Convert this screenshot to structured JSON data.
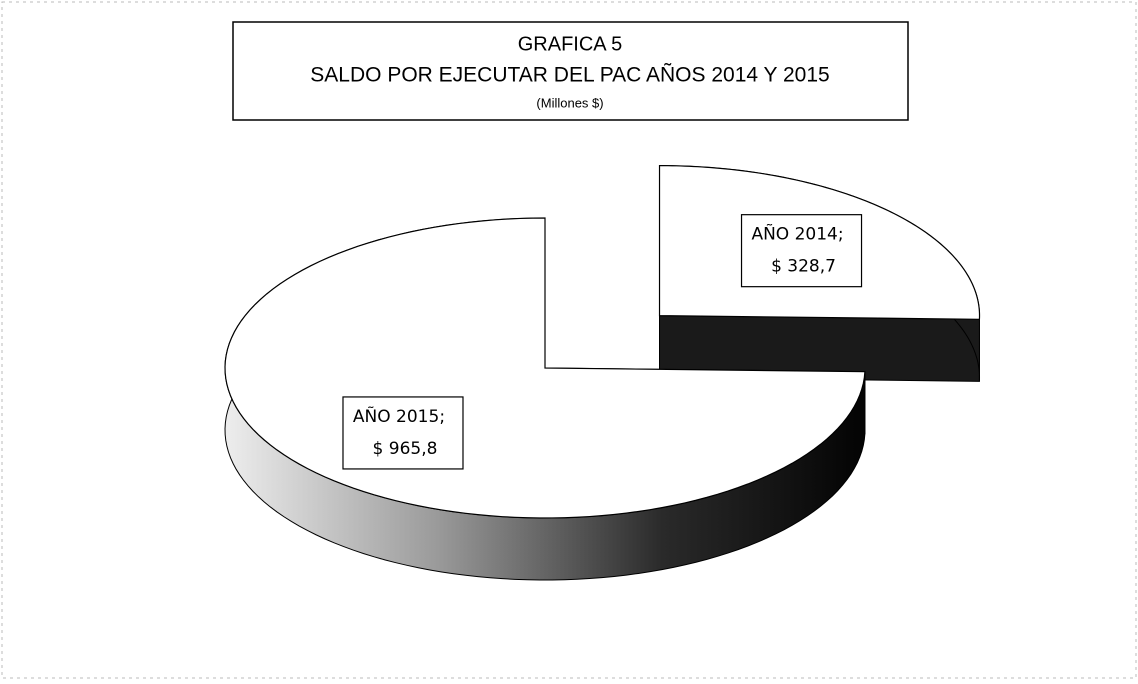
{
  "chart_data": {
    "type": "pie3d",
    "title": [
      "GRAFICA 5",
      "SALDO POR EJECUTAR DEL PAC  AÑOS 2014 Y 2015",
      "(Millones $)"
    ],
    "categories": [
      "AÑO 2014",
      "AÑO 2015"
    ],
    "values": [
      328.7,
      965.8
    ],
    "value_labels": [
      "$ 328,7",
      "$ 965,8"
    ],
    "label_separator": ";",
    "colors": [
      "#ffffff",
      "#ffffff"
    ],
    "exploded": [
      true,
      false
    ]
  }
}
